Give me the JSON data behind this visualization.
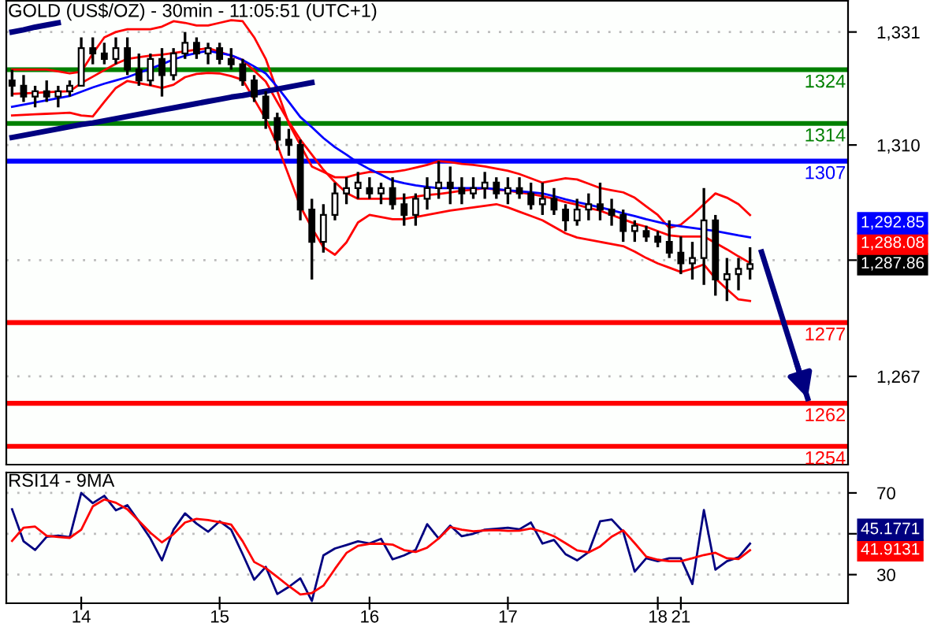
{
  "chart_data": [
    {
      "type": "candlestick",
      "title": "GOLD (US$/OZ) - 30min - 11:05:51 (UTC+1)",
      "color": "#000000",
      "categories": [
        null,
        null,
        null,
        null,
        null,
        null,
        null,
        null,
        null,
        null,
        null,
        null,
        null,
        null,
        null,
        null,
        null,
        null,
        null,
        null,
        null,
        null,
        null,
        null,
        null,
        null,
        null,
        null,
        null,
        null,
        null,
        null,
        null,
        null,
        null,
        null,
        null,
        null,
        null,
        null,
        null,
        null,
        null,
        null,
        null,
        null,
        null,
        null,
        null,
        null,
        null,
        null,
        null,
        null,
        null,
        null,
        null,
        null,
        null,
        null,
        null,
        null,
        null,
        null,
        null,
        null,
        null,
        null,
        null,
        null,
        null,
        null,
        null
      ],
      "ohlc": [
        [
          1322,
          1324,
          1319,
          1321
        ],
        [
          1321,
          1323,
          1318,
          1319
        ],
        [
          1319,
          1321,
          1317,
          1320
        ],
        [
          1320,
          1322,
          1318,
          1319
        ],
        [
          1319,
          1321,
          1317,
          1320
        ],
        [
          1320,
          1322,
          1319,
          1321
        ],
        [
          1321,
          1330,
          1321,
          1328
        ],
        [
          1328,
          1330,
          1325,
          1327
        ],
        [
          1327,
          1329,
          1325,
          1326
        ],
        [
          1326,
          1330,
          1325,
          1328
        ],
        [
          1328,
          1330,
          1323,
          1324
        ],
        [
          1324,
          1327,
          1321,
          1322
        ],
        [
          1322,
          1327,
          1321,
          1326
        ],
        [
          1326,
          1328,
          1319,
          1323
        ],
        [
          1323,
          1328,
          1322,
          1327
        ],
        [
          1327,
          1331,
          1326,
          1329
        ],
        [
          1329,
          1330,
          1326,
          1327
        ],
        [
          1327,
          1329,
          1325,
          1328
        ],
        [
          1328,
          1329,
          1325,
          1326
        ],
        [
          1326,
          1328,
          1324,
          1325
        ],
        [
          1325,
          1326,
          1321,
          1322
        ],
        [
          1322,
          1323,
          1318,
          1319
        ],
        [
          1319,
          1320,
          1313,
          1315
        ],
        [
          1315,
          1316,
          1309,
          1311
        ],
        [
          1311,
          1313,
          1308,
          1310
        ],
        [
          1310,
          1311,
          1296,
          1298
        ],
        [
          1298,
          1300,
          1285,
          1292
        ],
        [
          1292,
          1299,
          1290,
          1297
        ],
        [
          1297,
          1303,
          1296,
          1301
        ],
        [
          1301,
          1304,
          1299,
          1302
        ],
        [
          1302,
          1305,
          1300,
          1303
        ],
        [
          1302,
          1304,
          1300,
          1301
        ],
        [
          1301,
          1303,
          1299,
          1302
        ],
        [
          1302,
          1304,
          1298,
          1299
        ],
        [
          1299,
          1301,
          1295,
          1297
        ],
        [
          1297,
          1301,
          1295,
          1300
        ],
        [
          1300,
          1304,
          1298,
          1302
        ],
        [
          1302,
          1307,
          1300,
          1303
        ],
        [
          1303,
          1306,
          1299,
          1302
        ],
        [
          1302,
          1304,
          1299,
          1301
        ],
        [
          1301,
          1304,
          1300,
          1302
        ],
        [
          1302,
          1305,
          1300,
          1303
        ],
        [
          1303,
          1304,
          1300,
          1301
        ],
        [
          1301,
          1304,
          1299,
          1302
        ],
        [
          1302,
          1304,
          1300,
          1301
        ],
        [
          1301,
          1303,
          1298,
          1299
        ],
        [
          1299,
          1303,
          1297,
          1300
        ],
        [
          1300,
          1302,
          1297,
          1298
        ],
        [
          1298,
          1299,
          1294,
          1296
        ],
        [
          1296,
          1300,
          1295,
          1298
        ],
        [
          1298,
          1301,
          1296,
          1299
        ],
        [
          1299,
          1303,
          1296,
          1298
        ],
        [
          1298,
          1300,
          1295,
          1297
        ],
        [
          1297,
          1298,
          1292,
          1294
        ],
        [
          1294,
          1296,
          1292,
          1295
        ],
        [
          1294,
          1295,
          1292,
          1293
        ],
        [
          1293,
          1294,
          1291,
          1292
        ],
        [
          1292,
          1296,
          1289,
          1290
        ],
        [
          1290,
          1293,
          1286,
          1288
        ],
        [
          1288,
          1292,
          1285,
          1289
        ],
        [
          1289,
          1302,
          1284,
          1296
        ],
        [
          1296,
          1297,
          1282,
          1285
        ],
        [
          1285,
          1289,
          1281,
          1286
        ],
        [
          1286,
          1289,
          1283,
          1287
        ],
        [
          1287,
          1291,
          1285,
          1287.86
        ],
        null,
        null,
        null,
        null,
        null,
        null,
        null,
        null
      ],
      "series": [
        {
          "type": "line",
          "color": "#ff0000",
          "values": [
            1324,
            1324,
            1324,
            1324,
            1323.7,
            1323.3,
            1323.6,
            1327,
            1330,
            1331,
            1331.5,
            1331.5,
            1331.5,
            1332,
            1333,
            1332.7,
            1332.2,
            1332.2,
            1332.7,
            1333.2,
            1333,
            1330,
            1326,
            1320,
            1314,
            1310,
            1306,
            1305,
            1304,
            1304,
            1304.6,
            1305,
            1305,
            1305,
            1305.3,
            1305.8,
            1306.3,
            1307,
            1306.8,
            1306.5,
            1306.3,
            1306,
            1305.6,
            1305.2,
            1304.6,
            1303.8,
            1303,
            1303.4,
            1303.8,
            1303.6,
            1302.8,
            1302,
            1301.6,
            1301.2,
            1300.2,
            1298.6,
            1297,
            1294.6,
            1295.2,
            1297,
            1299,
            1301,
            1300.2,
            1299,
            1297,
            null,
            null,
            null,
            null,
            null,
            null,
            null,
            null
          ]
        },
        {
          "type": "line",
          "color": "#ff0000",
          "values": [
            1319.5,
            1319.6,
            1319.7,
            1319.8,
            1319.9,
            1320,
            1321.5,
            1322.7,
            1323.9,
            1325.1,
            1326,
            1326.3,
            1326.6,
            1326.8,
            1327.1,
            1327.4,
            1327.7,
            1328,
            1327.3,
            1326.6,
            1325.8,
            1323.8,
            1321.8,
            1318,
            1314.3,
            1311,
            1308.2,
            1305.4,
            1303.1,
            1301.1,
            1300,
            1300,
            1300,
            1300,
            1300.1,
            1300.4,
            1300.7,
            1300.9,
            1301.2,
            1301.5,
            1301.7,
            1302,
            1301.7,
            1301.5,
            1301.2,
            1300.9,
            1300.5,
            1300,
            1299.4,
            1298.9,
            1298.3,
            1297.8,
            1297,
            1296.2,
            1295.4,
            1294.8,
            1294,
            1293.2,
            1293,
            1293,
            1293,
            1291.8,
            1290.6,
            1289.3,
            1288.08,
            null,
            null,
            null,
            null,
            null,
            null,
            null,
            null
          ]
        },
        {
          "type": "line",
          "color": "#ff0000",
          "values": [
            1315.5,
            1315.6,
            1315.7,
            1315.8,
            1315.9,
            1316,
            1315.5,
            1315.3,
            1318,
            1320.6,
            1321.9,
            1321.5,
            1321.1,
            1320.6,
            1321.2,
            1322.6,
            1323.2,
            1323.4,
            1323.3,
            1322.8,
            1322.1,
            1318.5,
            1314.8,
            1310,
            1304.3,
            1298.6,
            1294.6,
            1291,
            1289.6,
            1291.9,
            1295.6,
            1297,
            1296.6,
            1296.2,
            1296.2,
            1296.6,
            1297,
            1297.4,
            1297.8,
            1298.1,
            1298.4,
            1298.7,
            1299,
            1298.4,
            1297.6,
            1296.8,
            1296,
            1294.8,
            1293.6,
            1292.8,
            1292.4,
            1292,
            1291.6,
            1291.2,
            1290.2,
            1289,
            1288,
            1287.2,
            1286.4,
            1287,
            1287.8,
            1285.2,
            1283.2,
            1281.3,
            1281,
            null,
            null,
            null,
            null,
            null,
            null,
            null,
            null
          ]
        },
        {
          "type": "line",
          "color": "#0000ff",
          "values": [
            1317.1,
            1317.5,
            1317.9,
            1318.3,
            1318.7,
            1319.1,
            1319.9,
            1320.7,
            1321.4,
            1322,
            1322.6,
            1323.4,
            1324.2,
            1325,
            1325.9,
            1326.6,
            1327.1,
            1327.5,
            1327.1,
            1326.7,
            1325.8,
            1324.6,
            1323.3,
            1320.8,
            1318,
            1315.2,
            1313.3,
            1311.3,
            1309.6,
            1308.2,
            1306.7,
            1305.5,
            1304.5,
            1303.4,
            1302.9,
            1302.5,
            1302.2,
            1302,
            1302,
            1302,
            1302,
            1302,
            1301.8,
            1301.6,
            1301.4,
            1301.2,
            1301,
            1300.5,
            1299.9,
            1299.4,
            1298.9,
            1298.4,
            1297.9,
            1297.3,
            1296.8,
            1296.2,
            1295.7,
            1295.2,
            1294.9,
            1294.6,
            1294.3,
            1294,
            1293.6,
            1293.2,
            1292.85,
            null,
            null,
            null,
            null,
            null,
            null,
            null,
            null
          ]
        },
        {
          "type": "line",
          "color": "#000080",
          "values": [
            1331,
            1331.4,
            1331.9,
            1332.3,
            1332.7,
            null,
            null,
            null,
            null,
            null,
            null,
            null,
            null,
            null,
            null,
            null,
            null,
            null,
            null,
            null,
            null,
            null,
            null,
            null,
            null,
            null,
            null,
            null,
            null,
            null,
            null,
            null,
            null,
            null,
            null,
            null,
            null,
            null,
            null,
            null,
            null,
            null,
            null,
            null,
            null,
            null,
            null,
            null,
            null,
            null,
            null,
            null,
            null,
            null,
            null,
            null,
            null,
            null,
            null,
            null,
            null,
            null,
            null,
            null,
            null,
            null,
            null,
            null,
            null,
            null,
            null,
            null,
            null
          ]
        },
        {
          "type": "line",
          "color": "#000080",
          "values": [
            1311.4,
            1311.8,
            1312.2,
            1312.6,
            1313.0,
            1313.4,
            1313.8,
            1314.1,
            1314.5,
            1314.9,
            1315.3,
            1315.7,
            1316.1,
            1316.5,
            1316.9,
            1317.3,
            1317.7,
            1318.1,
            1318.5,
            1318.9,
            1319.2,
            1319.6,
            1320.0,
            1320.4,
            1320.8,
            1321.2,
            1321.6,
            null,
            null,
            null,
            null,
            null,
            null,
            null,
            null,
            null,
            null,
            null,
            null,
            null,
            null,
            null,
            null,
            null,
            null,
            null,
            null,
            null,
            null,
            null,
            null,
            null,
            null,
            null,
            null,
            null,
            null,
            null,
            null,
            null,
            null,
            null,
            null,
            null,
            null,
            null,
            null,
            null,
            null,
            null,
            null,
            null,
            null
          ]
        },
        {
          "type": "line",
          "color": "#000080",
          "values": [
            null,
            null,
            null,
            null,
            null,
            null,
            null,
            null,
            null,
            null,
            null,
            null,
            null,
            null,
            null,
            null,
            null,
            null,
            null,
            null,
            null,
            null,
            null,
            null,
            null,
            null,
            null,
            null,
            null,
            null,
            null,
            null,
            null,
            null,
            null,
            null,
            null,
            null,
            null,
            null,
            null,
            null,
            null,
            null,
            null,
            null,
            null,
            null,
            null,
            null,
            null,
            null,
            null,
            null,
            null,
            null,
            null,
            null,
            null,
            null,
            null,
            null,
            null,
            null,
            null,
            1290.1,
            1283.3,
            1276.5,
            1269.7,
            1262.9,
            null,
            null,
            null
          ]
        }
      ],
      "ref_lines": [
        {
          "axis": "y",
          "value": 1324,
          "label": "1324",
          "color": "#008000"
        },
        {
          "axis": "y",
          "value": 1314,
          "label": "1314",
          "color": "#008000"
        },
        {
          "axis": "y",
          "value": 1307,
          "label": "1307",
          "color": "#0000ff"
        },
        {
          "axis": "y",
          "value": 1277,
          "label": "1277",
          "color": "#ff0000"
        },
        {
          "axis": "y",
          "value": 1262,
          "label": "1262",
          "color": "#ff0000"
        },
        {
          "axis": "y",
          "value": 1254,
          "label": "1254",
          "color": "#ff0000"
        }
      ],
      "annotations": [
        "1,292.85",
        "1,288.08",
        "1,287.86"
      ],
      "ylim": [
        1250.6,
        1336.8
      ],
      "yticks": [
        {
          "value": 1331,
          "label": "1,331"
        },
        {
          "value": 1310,
          "label": "1,310"
        },
        {
          "value": 1288.6,
          "label": null
        },
        {
          "value": 1267,
          "label": "1,267"
        }
      ],
      "grid": "y",
      "tick_labels": "y"
    },
    {
      "type": "line",
      "title": "RSI14 - 9MA",
      "categories": [
        null,
        null,
        null,
        null,
        null,
        null,
        "14",
        null,
        null,
        null,
        null,
        null,
        null,
        null,
        null,
        null,
        null,
        null,
        "15",
        null,
        null,
        null,
        null,
        null,
        null,
        null,
        null,
        null,
        null,
        null,
        null,
        "16",
        null,
        null,
        null,
        null,
        null,
        null,
        null,
        null,
        null,
        null,
        null,
        "17",
        null,
        null,
        null,
        null,
        null,
        null,
        null,
        null,
        null,
        null,
        null,
        null,
        "18",
        null,
        "21",
        null,
        null,
        null,
        null,
        null,
        null,
        null,
        null,
        null,
        null,
        null,
        null,
        null,
        null
      ],
      "series": [
        {
          "color": "#000080",
          "values": [
            62,
            46.3,
            42.1,
            48.5,
            49.1,
            48.3,
            70,
            65,
            68.6,
            61.5,
            64,
            56.1,
            47.7,
            37,
            52,
            60,
            55,
            51,
            56.1,
            52,
            40,
            27.5,
            33.8,
            20.5,
            24,
            28.2,
            17.1,
            39.4,
            42.8,
            44.5,
            46.3,
            45.3,
            47.5,
            37.5,
            39.4,
            42.1,
            54.7,
            47.7,
            54,
            48.8,
            50,
            52,
            52.5,
            53,
            52.2,
            55.5,
            45.2,
            47,
            40,
            37,
            41,
            56.1,
            57,
            51,
            31.5,
            38,
            36.6,
            38,
            38,
            25.4,
            61.6,
            32.4,
            36.6,
            38.5,
            45.1771,
            null,
            null,
            null,
            null,
            null,
            null,
            null,
            null
          ]
        },
        {
          "color": "#ff0000",
          "values": [
            46.5,
            53,
            53.5,
            49,
            48.4,
            48,
            52,
            63.4,
            66.8,
            65.2,
            62,
            56.3,
            50.5,
            45.8,
            49.8,
            55.5,
            57.3,
            56.7,
            55.7,
            54.5,
            46.3,
            36.2,
            33.2,
            28.9,
            24.4,
            20.3,
            21,
            24.6,
            32.8,
            40.6,
            44.1,
            45.1,
            45.2,
            44.7,
            42,
            41.1,
            43.2,
            47.7,
            53.3,
            52,
            51.2,
            51.6,
            51.8,
            51.4,
            51.5,
            52.6,
            51,
            48.8,
            45.4,
            41.9,
            40.9,
            43.8,
            48.6,
            51.7,
            45.4,
            38.8,
            37.3,
            36.6,
            36.6,
            38,
            39.6,
            40.7,
            38,
            37.6,
            41.9131,
            null,
            null,
            null,
            null,
            null,
            null,
            null,
            null
          ]
        }
      ],
      "annotations": [
        "45.1771",
        "41.9131"
      ],
      "ylim": [
        16,
        80
      ],
      "yticks": [
        30,
        {
          "value": 50,
          "label": null
        },
        70
      ],
      "grid": "y"
    }
  ]
}
